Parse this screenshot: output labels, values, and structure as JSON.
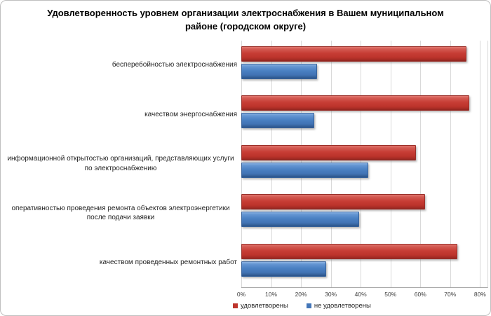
{
  "chart_data": {
    "type": "bar",
    "orientation": "horizontal",
    "title": "Удовлетворенность уровнем организации электроснабжения в Вашем муниципальном районе (городском округе)",
    "categories": [
      "бесперебойностью электроснабжения",
      "качеством энергоснабжения",
      "информационной открытостью организаций, представляющих услуги по электроснабжению",
      "оперативностью проведения ремонта объектов электроэнергетики после подачи заявки",
      "качеством проведенных ремонтных работ"
    ],
    "series": [
      {
        "name": "удовлетворены",
        "color": "#C23B33",
        "values": [
          75,
          76,
          58,
          61,
          72
        ]
      },
      {
        "name": "не удовлетворены",
        "color": "#4A80C2",
        "values": [
          25,
          24,
          42,
          39,
          28
        ]
      }
    ],
    "x_ticks": [
      "0%",
      "10%",
      "20%",
      "30%",
      "40%",
      "50%",
      "60%",
      "70%",
      "80%"
    ],
    "xlim": [
      0,
      82.5
    ],
    "grid": true,
    "legend_position": "bottom",
    "value_unit": "%",
    "colors": {
      "grid": "#D9D9D9",
      "axis_line": "#A6A6A6",
      "frame_border": "#BFBFBF",
      "background": "#FFFFFF"
    }
  }
}
